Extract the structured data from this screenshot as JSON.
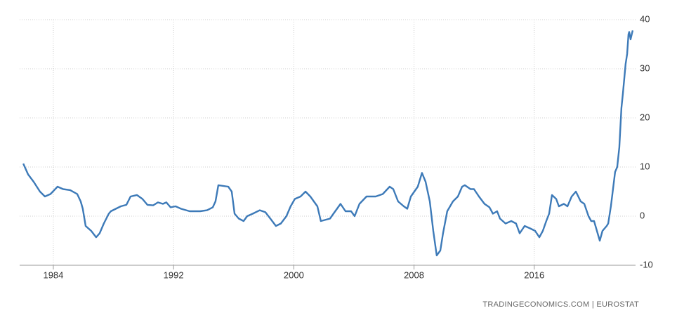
{
  "chart_data": {
    "type": "line",
    "color": "#3d7ab8",
    "grid": true,
    "source": "TRADINGECONOMICS.COM | EUROSTAT",
    "xlim": [
      1981.76,
      2022.74
    ],
    "xticks": [
      1984,
      1992,
      2000,
      2008,
      2016
    ],
    "ylim": [
      -10,
      40
    ],
    "yticks": [
      -10,
      0,
      10,
      20,
      30,
      40
    ],
    "x": [
      1982.0,
      1982.32,
      1982.69,
      1983.11,
      1983.44,
      1983.81,
      1984.28,
      1984.65,
      1985.12,
      1985.59,
      1985.82,
      1985.96,
      1986.15,
      1986.52,
      1986.85,
      1987.08,
      1987.36,
      1987.69,
      1987.83,
      1988.16,
      1988.49,
      1988.86,
      1989.14,
      1989.56,
      1989.93,
      1990.26,
      1990.64,
      1990.96,
      1991.29,
      1991.52,
      1991.8,
      1992.13,
      1992.5,
      1993.07,
      1993.77,
      1994.23,
      1994.61,
      1994.79,
      1994.98,
      1995.64,
      1995.87,
      1996.06,
      1996.34,
      1996.66,
      1996.9,
      1997.27,
      1997.74,
      1998.11,
      1998.44,
      1998.81,
      1999.14,
      1999.51,
      1999.79,
      2000.07,
      2000.45,
      2000.78,
      2001.1,
      2001.57,
      2001.8,
      2002.41,
      2002.64,
      2003.11,
      2003.44,
      2003.81,
      2004.05,
      2004.37,
      2004.84,
      2005.45,
      2005.92,
      2006.38,
      2006.62,
      2006.94,
      2007.32,
      2007.55,
      2007.79,
      2008.25,
      2008.53,
      2008.77,
      2009.05,
      2009.28,
      2009.51,
      2009.75,
      2009.93,
      2010.21,
      2010.59,
      2010.92,
      2011.2,
      2011.38,
      2011.76,
      2011.99,
      2012.32,
      2012.69,
      2013.02,
      2013.25,
      2013.53,
      2013.72,
      2014.09,
      2014.47,
      2014.79,
      2015.03,
      2015.36,
      2015.73,
      2016.06,
      2016.34,
      2016.57,
      2016.8,
      2016.99,
      2017.18,
      2017.46,
      2017.64,
      2017.97,
      2018.21,
      2018.49,
      2018.77,
      2019.09,
      2019.33,
      2019.61,
      2019.79,
      2019.98,
      2020.17,
      2020.36,
      2020.54,
      2020.82,
      2020.92,
      2021.1,
      2021.38,
      2021.52,
      2021.66,
      2021.8,
      2021.9,
      2022.08,
      2022.18,
      2022.27,
      2022.32,
      2022.41,
      2022.55
    ],
    "values": [
      10.7,
      8.5,
      7,
      5,
      4,
      4.5,
      6,
      5.5,
      5.3,
      4.5,
      3,
      1.5,
      -2,
      -3,
      -4.3,
      -3.5,
      -1.5,
      0.5,
      1,
      1.5,
      2,
      2.3,
      4,
      4.3,
      3.5,
      2.3,
      2.2,
      2.8,
      2.5,
      2.8,
      1.8,
      2,
      1.5,
      1,
      1,
      1.2,
      1.8,
      3,
      6.3,
      6,
      5,
      0.5,
      -0.5,
      -1,
      0,
      0.5,
      1.2,
      0.8,
      -0.5,
      -2,
      -1.5,
      0,
      2,
      3.5,
      4,
      5,
      4,
      2,
      -1,
      -0.5,
      0.5,
      2.5,
      1,
      1,
      0,
      2.5,
      4,
      4,
      4.5,
      6,
      5.5,
      3,
      2,
      1.5,
      4,
      6,
      8.8,
      7,
      3,
      -3,
      -8,
      -7,
      -3.5,
      1,
      3,
      4,
      6,
      6.3,
      5.5,
      5.5,
      4,
      2.5,
      1.8,
      0.5,
      1,
      -0.5,
      -1.5,
      -1,
      -1.5,
      -3.5,
      -2,
      -2.5,
      -3,
      -4.3,
      -3,
      -1,
      0.5,
      4.3,
      3.5,
      2,
      2.5,
      2,
      4,
      5,
      3,
      2.5,
      0,
      -1,
      -1,
      -3,
      -5,
      -3,
      -2,
      -1.5,
      2,
      9,
      10,
      14,
      22,
      25,
      31,
      33,
      37,
      37.5,
      36,
      37.8
    ]
  }
}
